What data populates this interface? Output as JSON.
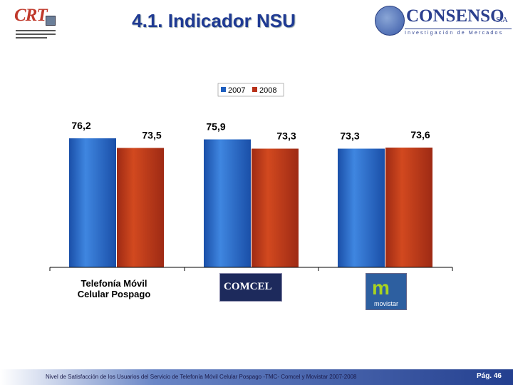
{
  "header": {
    "title": "4.1.  Indicador NSU",
    "crt_logo": {
      "text": "CRT"
    },
    "consenso_logo": {
      "name": "CONSENSO",
      "suffix": "S.A",
      "tagline": "Investigación de Mercados"
    }
  },
  "chart_data": {
    "type": "bar",
    "categories": [
      "Telefonía Móvil Celular Pospago",
      "COMCEL",
      "movistar"
    ],
    "series": [
      {
        "name": "2007",
        "values": [
          76.2,
          75.9,
          73.3
        ],
        "labels": [
          "76,2",
          "75,9",
          "73,3"
        ]
      },
      {
        "name": "2008",
        "values": [
          73.5,
          73.3,
          73.6
        ],
        "labels": [
          "73,5",
          "73,3",
          "73,6"
        ]
      }
    ],
    "ylim": [
      40,
      78
    ],
    "legend": "top-center",
    "grid": false,
    "colors": {
      "2007": "#1f5fbf",
      "2008": "#b8321a"
    }
  },
  "categories_display": {
    "telefonia": "Telefonía Móvil Celular Pospago",
    "comcel": "COMCEL",
    "movistar": "movistar"
  },
  "footer": {
    "text": "Nivel de Satisfacción de los Usuarios del Servicio de Telefonía Móvil Celular Pospago -TMC- Comcel y Movistar 2007-2008",
    "page": "Pág. 46"
  }
}
